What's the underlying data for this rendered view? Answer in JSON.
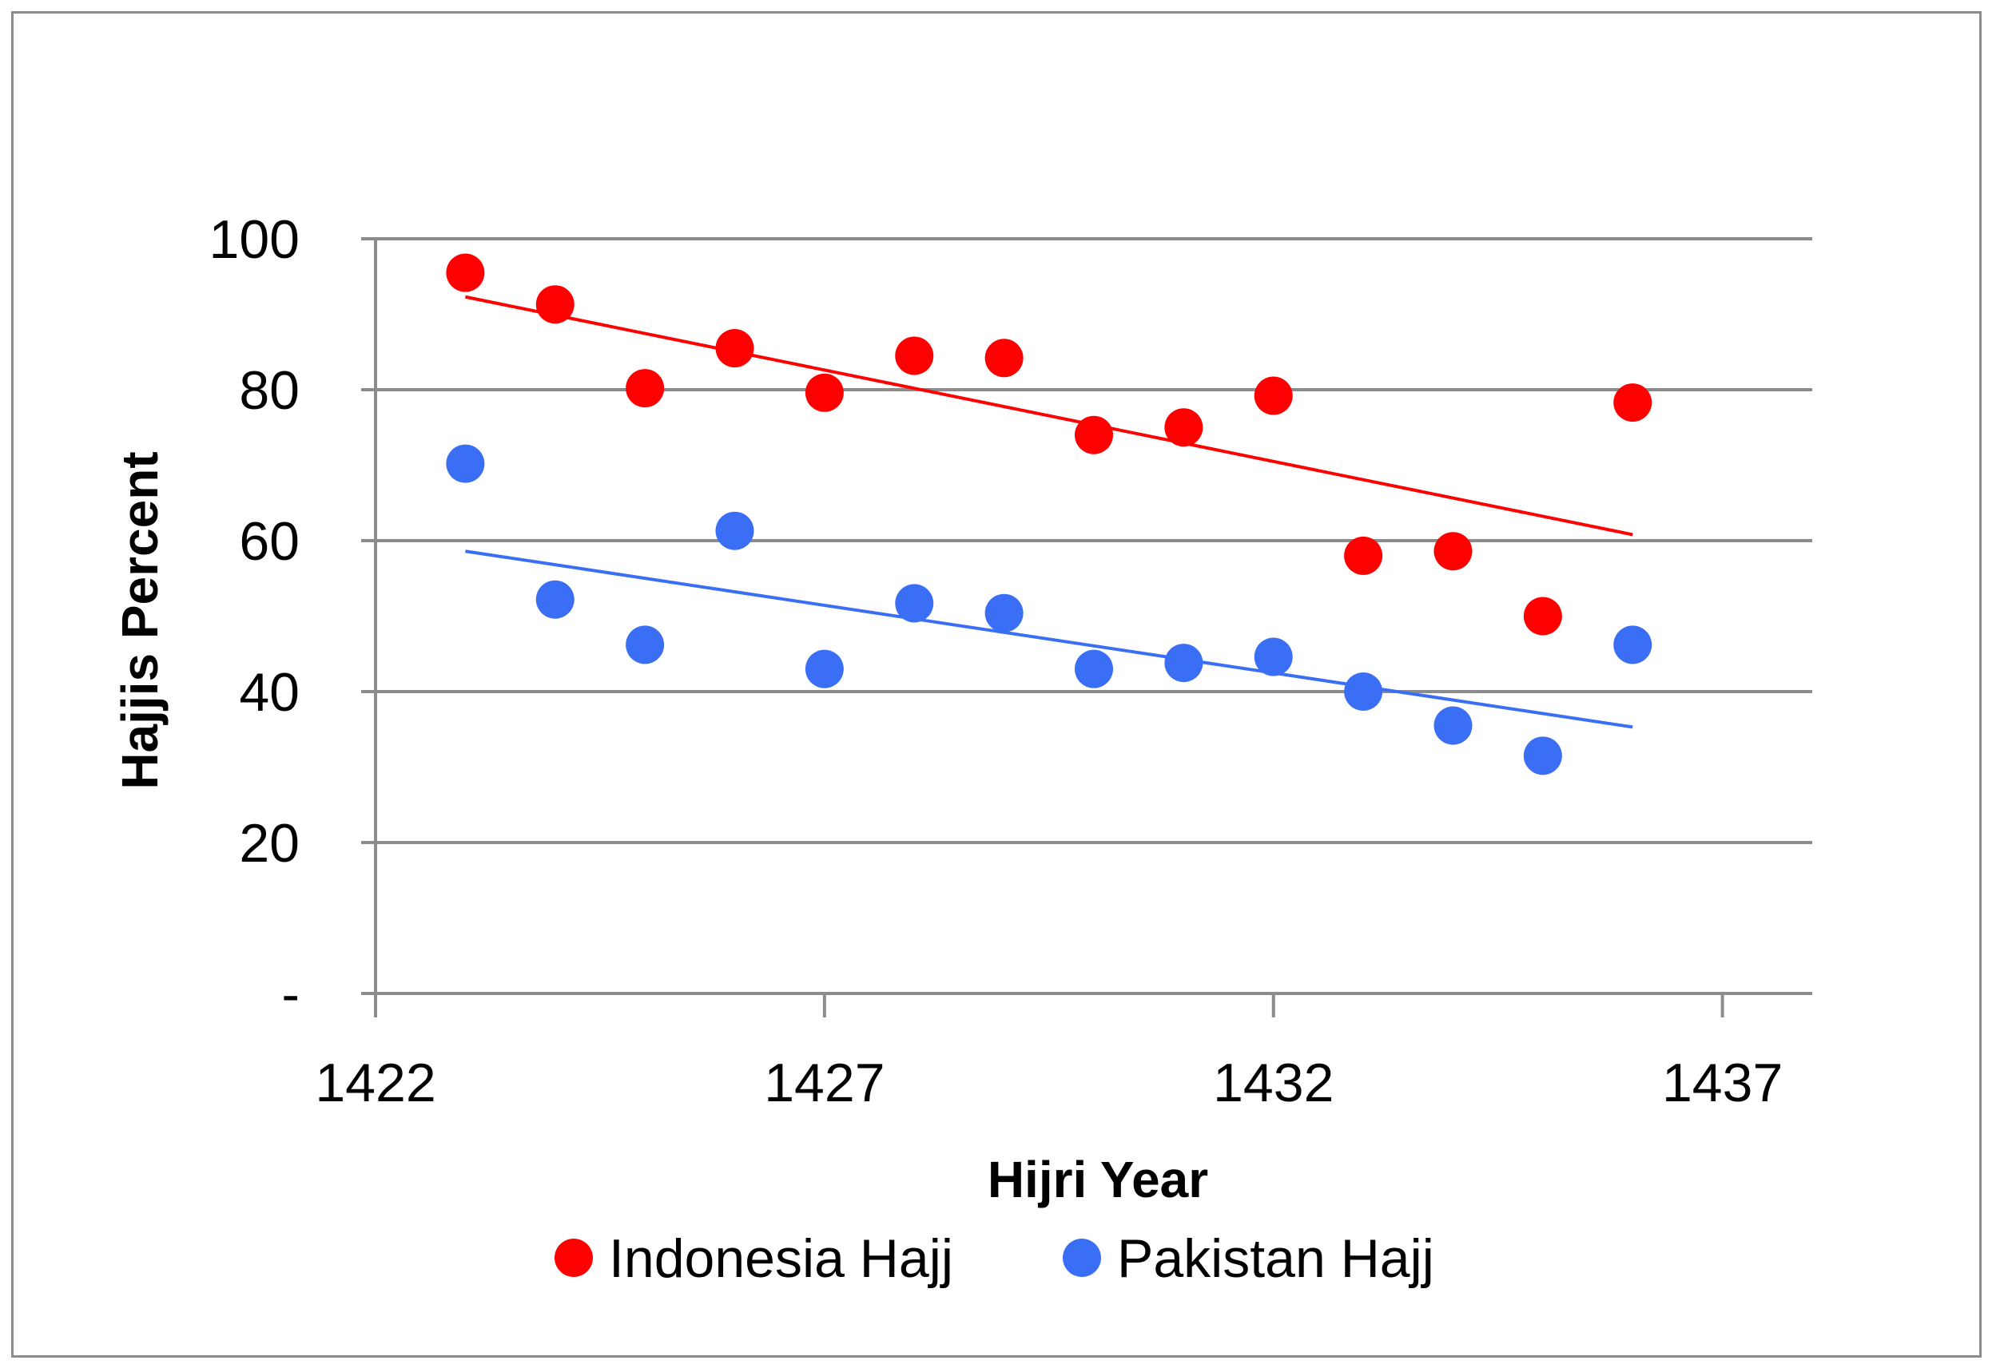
{
  "chart_data": {
    "type": "scatter",
    "title": "",
    "xlabel": "Hijri Year",
    "ylabel": "Hajjis Percent",
    "xlim": [
      1422,
      1438
    ],
    "ylim": [
      0,
      100
    ],
    "x_ticks": [
      1422,
      1427,
      1432,
      1437
    ],
    "x_tick_labels": [
      "1422",
      "1427",
      "1432",
      "1437"
    ],
    "y_ticks": [
      0,
      20,
      40,
      60,
      80,
      100
    ],
    "y_tick_labels": [
      "-",
      "20",
      "40",
      "60",
      "80",
      "100"
    ],
    "grid": "horizontal",
    "legend_position": "bottom",
    "series": [
      {
        "name": "Indonesia Hajj",
        "color": "#ff0000",
        "x": [
          1423,
          1424,
          1425,
          1426,
          1427,
          1428,
          1429,
          1430,
          1431,
          1432,
          1433,
          1434,
          1435,
          1436
        ],
        "y": [
          95.5,
          91.3,
          80.2,
          85.5,
          79.6,
          84.5,
          84.2,
          74.0,
          75.0,
          79.2,
          58.0,
          58.6,
          50.0,
          78.3
        ],
        "trendline": {
          "x": [
            1423,
            1436
          ],
          "y": [
            92.3,
            60.8
          ]
        }
      },
      {
        "name": "Pakistan Hajj",
        "color": "#3a6ef5",
        "x": [
          1423,
          1424,
          1425,
          1426,
          1427,
          1428,
          1429,
          1430,
          1431,
          1432,
          1433,
          1434,
          1435,
          1436
        ],
        "y": [
          70.2,
          52.2,
          46.2,
          61.3,
          43.0,
          51.7,
          50.4,
          43.0,
          43.8,
          44.6,
          40.0,
          35.5,
          31.5,
          46.2
        ],
        "trendline": {
          "x": [
            1423,
            1436
          ],
          "y": [
            58.6,
            35.3
          ]
        }
      }
    ]
  }
}
